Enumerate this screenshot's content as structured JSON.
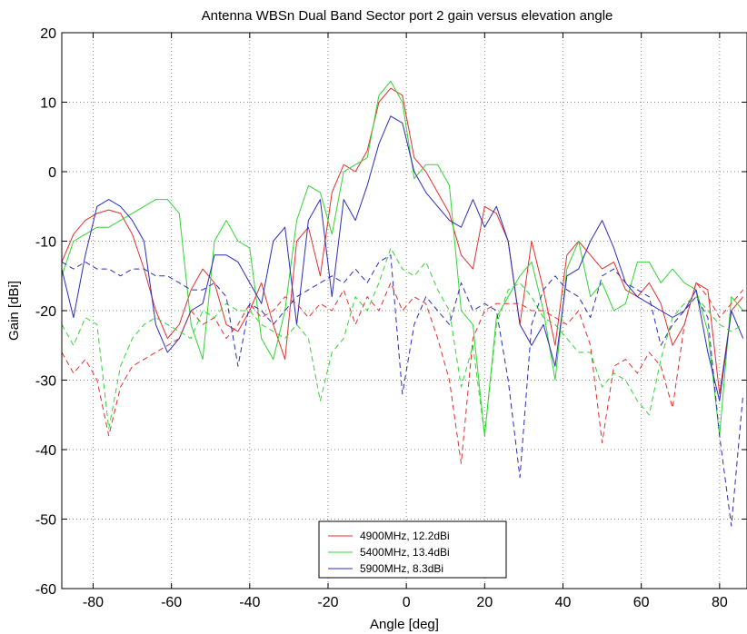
{
  "chart_data": {
    "type": "line",
    "title": "Antenna WBSn Dual Band Sector port 2 gain versus elevation angle",
    "xlabel": "Angle [deg]",
    "ylabel": "Gain [dBi]",
    "xlim": [
      -88,
      87
    ],
    "ylim": [
      -60,
      20
    ],
    "xticks": [
      -80,
      -60,
      -40,
      -20,
      0,
      20,
      40,
      60,
      80
    ],
    "yticks": [
      -60,
      -50,
      -40,
      -30,
      -20,
      -10,
      0,
      10,
      20
    ],
    "grid": true,
    "legend_position": "bottom-center",
    "series": [
      {
        "name": "4900MHz, 12.2dBi",
        "color": "#e0302f",
        "style": "solid",
        "x": [
          -88,
          -85,
          -82,
          -79,
          -76,
          -73,
          -70,
          -67,
          -64,
          -61,
          -58,
          -55,
          -52,
          -49,
          -46,
          -43,
          -40,
          -37,
          -34,
          -31,
          -28,
          -25,
          -22,
          -19,
          -16,
          -13,
          -10,
          -7,
          -4,
          -1,
          2,
          5,
          8,
          11,
          14,
          17,
          20,
          23,
          26,
          29,
          32,
          35,
          38,
          41,
          44,
          47,
          50,
          53,
          56,
          59,
          62,
          65,
          68,
          71,
          74,
          77,
          80,
          83,
          86
        ],
        "y": [
          -13,
          -9,
          -7,
          -6,
          -5.5,
          -6,
          -9,
          -14,
          -20,
          -24,
          -22,
          -17,
          -14,
          -16,
          -22,
          -23,
          -20,
          -16,
          -22,
          -27,
          -10,
          -8,
          -15,
          -3,
          1,
          0,
          3,
          10,
          12,
          11,
          2,
          0,
          -3,
          -6,
          -12,
          -14,
          -5,
          -6,
          -10,
          -22,
          -10,
          -17,
          -25,
          -12,
          -10,
          -12,
          -14,
          -13,
          -17,
          -18,
          -16,
          -19,
          -25,
          -22,
          -16,
          -17,
          -32,
          -20,
          -18
        ]
      },
      {
        "name": "5400MHz, 13.4dBi",
        "color": "#33d433",
        "style": "solid",
        "x": [
          -88,
          -85,
          -82,
          -79,
          -76,
          -73,
          -70,
          -67,
          -64,
          -61,
          -58,
          -55,
          -52,
          -49,
          -46,
          -43,
          -40,
          -37,
          -34,
          -31,
          -28,
          -25,
          -22,
          -19,
          -16,
          -13,
          -10,
          -7,
          -4,
          -1,
          2,
          5,
          8,
          11,
          14,
          17,
          20,
          23,
          26,
          29,
          32,
          35,
          38,
          41,
          44,
          47,
          50,
          53,
          56,
          59,
          62,
          65,
          68,
          71,
          74,
          77,
          80,
          83,
          86
        ],
        "y": [
          -15,
          -10,
          -9,
          -8,
          -8,
          -7,
          -6,
          -5,
          -4,
          -4,
          -6,
          -22,
          -27,
          -10,
          -7,
          -10,
          -11,
          -24,
          -27,
          -20,
          -7,
          -2,
          -3,
          -9,
          0,
          1,
          2,
          11,
          13,
          10,
          -1,
          1,
          1,
          -2,
          -20,
          -22,
          -38,
          -21,
          -18,
          -15,
          -13,
          -20,
          -30,
          -14,
          -10,
          -18,
          -16,
          -20,
          -19,
          -13,
          -13,
          -16,
          -14,
          -16,
          -17,
          -23,
          -38,
          -18,
          -20
        ]
      },
      {
        "name": "5900MHz,  8.3dBi",
        "color": "#2c2cb8",
        "style": "solid",
        "x": [
          -88,
          -85,
          -82,
          -79,
          -76,
          -73,
          -70,
          -67,
          -64,
          -61,
          -58,
          -55,
          -52,
          -49,
          -46,
          -43,
          -40,
          -37,
          -34,
          -31,
          -28,
          -25,
          -22,
          -19,
          -16,
          -13,
          -10,
          -7,
          -4,
          -1,
          2,
          5,
          8,
          11,
          14,
          17,
          20,
          23,
          26,
          29,
          32,
          35,
          38,
          41,
          44,
          47,
          50,
          53,
          56,
          59,
          62,
          65,
          68,
          71,
          74,
          77,
          80,
          83,
          86
        ],
        "y": [
          -14,
          -21,
          -12,
          -5,
          -4,
          -5,
          -7,
          -10,
          -22,
          -26,
          -24,
          -20,
          -19,
          -12,
          -12,
          -13,
          -16,
          -19,
          -10,
          -8,
          -22,
          -7,
          -4,
          -18,
          -4,
          -7,
          -2,
          4,
          8,
          7,
          0,
          -3,
          -5,
          -7,
          -8,
          -4,
          -8,
          -5,
          -10,
          -22,
          -25,
          -22,
          -28,
          -15,
          -14,
          -10,
          -7,
          -11,
          -16,
          -18,
          -19,
          -20,
          -21,
          -20,
          -17,
          -26,
          -33,
          -20,
          -24
        ]
      },
      {
        "name": "",
        "color": "#e0302f",
        "style": "dashed",
        "x": [
          -88,
          -85,
          -82,
          -79,
          -76,
          -73,
          -70,
          -67,
          -64,
          -61,
          -58,
          -55,
          -52,
          -49,
          -46,
          -43,
          -40,
          -37,
          -34,
          -31,
          -28,
          -25,
          -22,
          -19,
          -16,
          -13,
          -10,
          -7,
          -4,
          -1,
          2,
          5,
          8,
          11,
          14,
          17,
          20,
          23,
          26,
          29,
          32,
          35,
          38,
          41,
          44,
          47,
          50,
          53,
          56,
          59,
          62,
          65,
          68,
          71,
          74,
          77,
          80,
          83,
          86
        ],
        "y": [
          -26,
          -29,
          -27,
          -30,
          -38,
          -31,
          -28,
          -27,
          -26,
          -25,
          -24,
          -20,
          -22,
          -21,
          -24,
          -22,
          -19,
          -21,
          -20,
          -18,
          -19,
          -21,
          -19,
          -20,
          -17,
          -22,
          -18,
          -20,
          -16,
          -20,
          -18,
          -19,
          -24,
          -30,
          -42,
          -24,
          -20,
          -19,
          -19,
          -19,
          -20,
          -20,
          -21,
          -22,
          -20,
          -25,
          -39,
          -28,
          -27,
          -29,
          -26,
          -28,
          -34,
          -22,
          -16,
          -18,
          -21,
          -19,
          -17
        ]
      },
      {
        "name": "",
        "color": "#33d433",
        "style": "dashed",
        "x": [
          -88,
          -85,
          -82,
          -79,
          -76,
          -73,
          -70,
          -67,
          -64,
          -61,
          -58,
          -55,
          -52,
          -49,
          -46,
          -43,
          -40,
          -37,
          -34,
          -31,
          -28,
          -25,
          -22,
          -19,
          -16,
          -13,
          -10,
          -7,
          -4,
          -1,
          2,
          5,
          8,
          11,
          14,
          17,
          20,
          23,
          26,
          29,
          32,
          35,
          38,
          41,
          44,
          47,
          50,
          53,
          56,
          59,
          62,
          65,
          68,
          71,
          74,
          77,
          80,
          83,
          86
        ],
        "y": [
          -22,
          -25,
          -21,
          -22,
          -37,
          -28,
          -24,
          -22,
          -21,
          -22,
          -23,
          -24,
          -20,
          -21,
          -19,
          -20,
          -20,
          -22,
          -23,
          -24,
          -22,
          -24,
          -33,
          -26,
          -24,
          -18,
          -20,
          -16,
          -11,
          -14,
          -15,
          -13,
          -17,
          -20,
          -31,
          -25,
          -38,
          -22,
          -17,
          -16,
          -18,
          -21,
          -22,
          -24,
          -26,
          -26,
          -31,
          -29,
          -30,
          -33,
          -35,
          -27,
          -21,
          -19,
          -18,
          -20,
          -22,
          -23,
          -22
        ]
      },
      {
        "name": "",
        "color": "#2c2cb8",
        "style": "dashed",
        "x": [
          -88,
          -85,
          -82,
          -79,
          -76,
          -73,
          -70,
          -67,
          -64,
          -61,
          -58,
          -55,
          -52,
          -49,
          -46,
          -43,
          -40,
          -37,
          -34,
          -31,
          -28,
          -25,
          -22,
          -19,
          -16,
          -13,
          -10,
          -7,
          -4,
          -1,
          2,
          5,
          8,
          11,
          14,
          17,
          20,
          23,
          26,
          29,
          32,
          35,
          38,
          41,
          44,
          47,
          50,
          53,
          56,
          59,
          62,
          65,
          68,
          71,
          74,
          77,
          80,
          83,
          86
        ],
        "y": [
          -13,
          -14,
          -13,
          -14,
          -14,
          -15,
          -14,
          -14,
          -15,
          -15,
          -16,
          -17,
          -17,
          -16,
          -18,
          -28,
          -19,
          -20,
          -22,
          -20,
          -18,
          -17,
          -16,
          -15,
          -16,
          -14,
          -16,
          -13,
          -12,
          -32,
          -22,
          -18,
          -20,
          -22,
          -16,
          -20,
          -19,
          -20,
          -30,
          -44,
          -22,
          -17,
          -15,
          -17,
          -18,
          -21,
          -15,
          -14,
          -16,
          -17,
          -18,
          -25,
          -22,
          -20,
          -18,
          -21,
          -38,
          -51,
          -32
        ]
      }
    ]
  }
}
